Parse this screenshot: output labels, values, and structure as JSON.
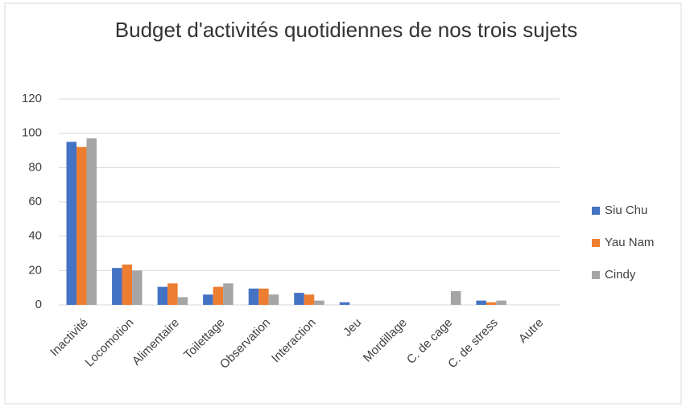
{
  "chart_data": {
    "type": "bar",
    "title": "Budget d'activités quotidiennes de nos trois sujets",
    "categories": [
      "Inactivité",
      "Locomotion",
      "Alimentaire",
      "Toilettage",
      "Observation",
      "Interaction",
      "Jeu",
      "Mordillage",
      "C. de cage",
      "C. de stress",
      "Autre"
    ],
    "series": [
      {
        "name": "Siu Chu",
        "color": "#4472c4",
        "values": [
          95,
          21.5,
          10.5,
          6,
          9.5,
          7,
          1.5,
          0,
          0,
          2.5,
          0
        ]
      },
      {
        "name": "Yau Nam",
        "color": "#ed7d31",
        "values": [
          92,
          23.5,
          12.5,
          10.5,
          9.5,
          6,
          0,
          0,
          0,
          1.5,
          0
        ]
      },
      {
        "name": "Cindy",
        "color": "#a5a5a5",
        "values": [
          97,
          20,
          4.5,
          12.5,
          6,
          2.5,
          0,
          0,
          8,
          2.5,
          0
        ]
      }
    ],
    "ylim": [
      0,
      120
    ],
    "yticks": [
      0,
      20,
      40,
      60,
      80,
      100,
      120
    ],
    "grid": true,
    "legend": "right"
  }
}
